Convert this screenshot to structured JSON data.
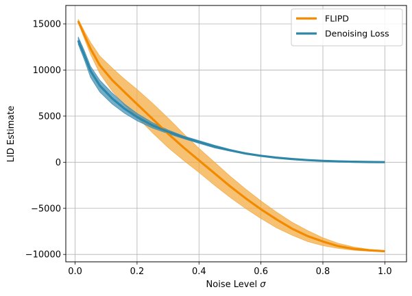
{
  "chart_data": {
    "type": "line",
    "title": "",
    "xlabel": "Noise Level",
    "xlabel_symbol": "σ",
    "ylabel": "LID Estimate",
    "xlim": [
      -0.03,
      1.07
    ],
    "ylim": [
      -10800,
      17000
    ],
    "grid": true,
    "legend_position": "top-right",
    "x_ticks": [
      0.0,
      0.2,
      0.4,
      0.6,
      0.8,
      1.0
    ],
    "x_tick_labels": [
      "0.0",
      "0.2",
      "0.4",
      "0.6",
      "0.8",
      "1.0"
    ],
    "y_ticks": [
      -10000,
      -5000,
      0,
      5000,
      10000,
      15000
    ],
    "y_tick_labels": [
      "−10000",
      "−5000",
      "0",
      "5000",
      "10000",
      "15000"
    ],
    "series": [
      {
        "name": "FLIPD",
        "color": "#F28A00",
        "band_color": "#F4A93E",
        "x": [
          0.01,
          0.03,
          0.05,
          0.08,
          0.12,
          0.16,
          0.2,
          0.25,
          0.3,
          0.35,
          0.4,
          0.45,
          0.5,
          0.55,
          0.6,
          0.65,
          0.7,
          0.75,
          0.8,
          0.85,
          0.9,
          0.95,
          1.0
        ],
        "mean": [
          15300,
          13800,
          12300,
          10500,
          8900,
          7600,
          6300,
          4700,
          3100,
          1600,
          200,
          -1200,
          -2600,
          -3900,
          -5100,
          -6200,
          -7200,
          -8000,
          -8600,
          -9100,
          -9400,
          -9550,
          -9650
        ],
        "upper": [
          15500,
          14200,
          13000,
          11500,
          10200,
          9000,
          7900,
          6400,
          4800,
          3100,
          1500,
          0,
          -1500,
          -2900,
          -4200,
          -5400,
          -6500,
          -7400,
          -8200,
          -8800,
          -9200,
          -9450,
          -9600
        ],
        "lower": [
          15100,
          13400,
          11700,
          9600,
          7700,
          6200,
          4900,
          3200,
          1600,
          200,
          -1100,
          -2500,
          -3800,
          -5000,
          -6100,
          -7100,
          -7900,
          -8600,
          -9050,
          -9350,
          -9550,
          -9650,
          -9700
        ]
      },
      {
        "name": "Denoising Loss",
        "color": "#2E86A8",
        "band_color": "#3F8DB2",
        "x": [
          0.01,
          0.03,
          0.05,
          0.08,
          0.12,
          0.16,
          0.2,
          0.25,
          0.3,
          0.35,
          0.4,
          0.45,
          0.5,
          0.55,
          0.6,
          0.65,
          0.7,
          0.75,
          0.8,
          0.85,
          0.9,
          0.95,
          1.0
        ],
        "mean": [
          13200,
          11600,
          9900,
          8300,
          6900,
          5800,
          4900,
          4000,
          3300,
          2700,
          2200,
          1700,
          1300,
          950,
          700,
          500,
          350,
          230,
          150,
          90,
          50,
          25,
          10
        ],
        "upper": [
          13600,
          12100,
          10400,
          8900,
          7500,
          6300,
          5300,
          4300,
          3500,
          2850,
          2350,
          1850,
          1400,
          1000,
          730,
          520,
          360,
          240,
          155,
          95,
          55,
          28,
          12
        ],
        "lower": [
          12800,
          11100,
          9200,
          7600,
          6300,
          5300,
          4500,
          3700,
          3100,
          2550,
          2050,
          1550,
          1200,
          900,
          670,
          480,
          340,
          220,
          145,
          85,
          45,
          22,
          8
        ]
      }
    ]
  }
}
